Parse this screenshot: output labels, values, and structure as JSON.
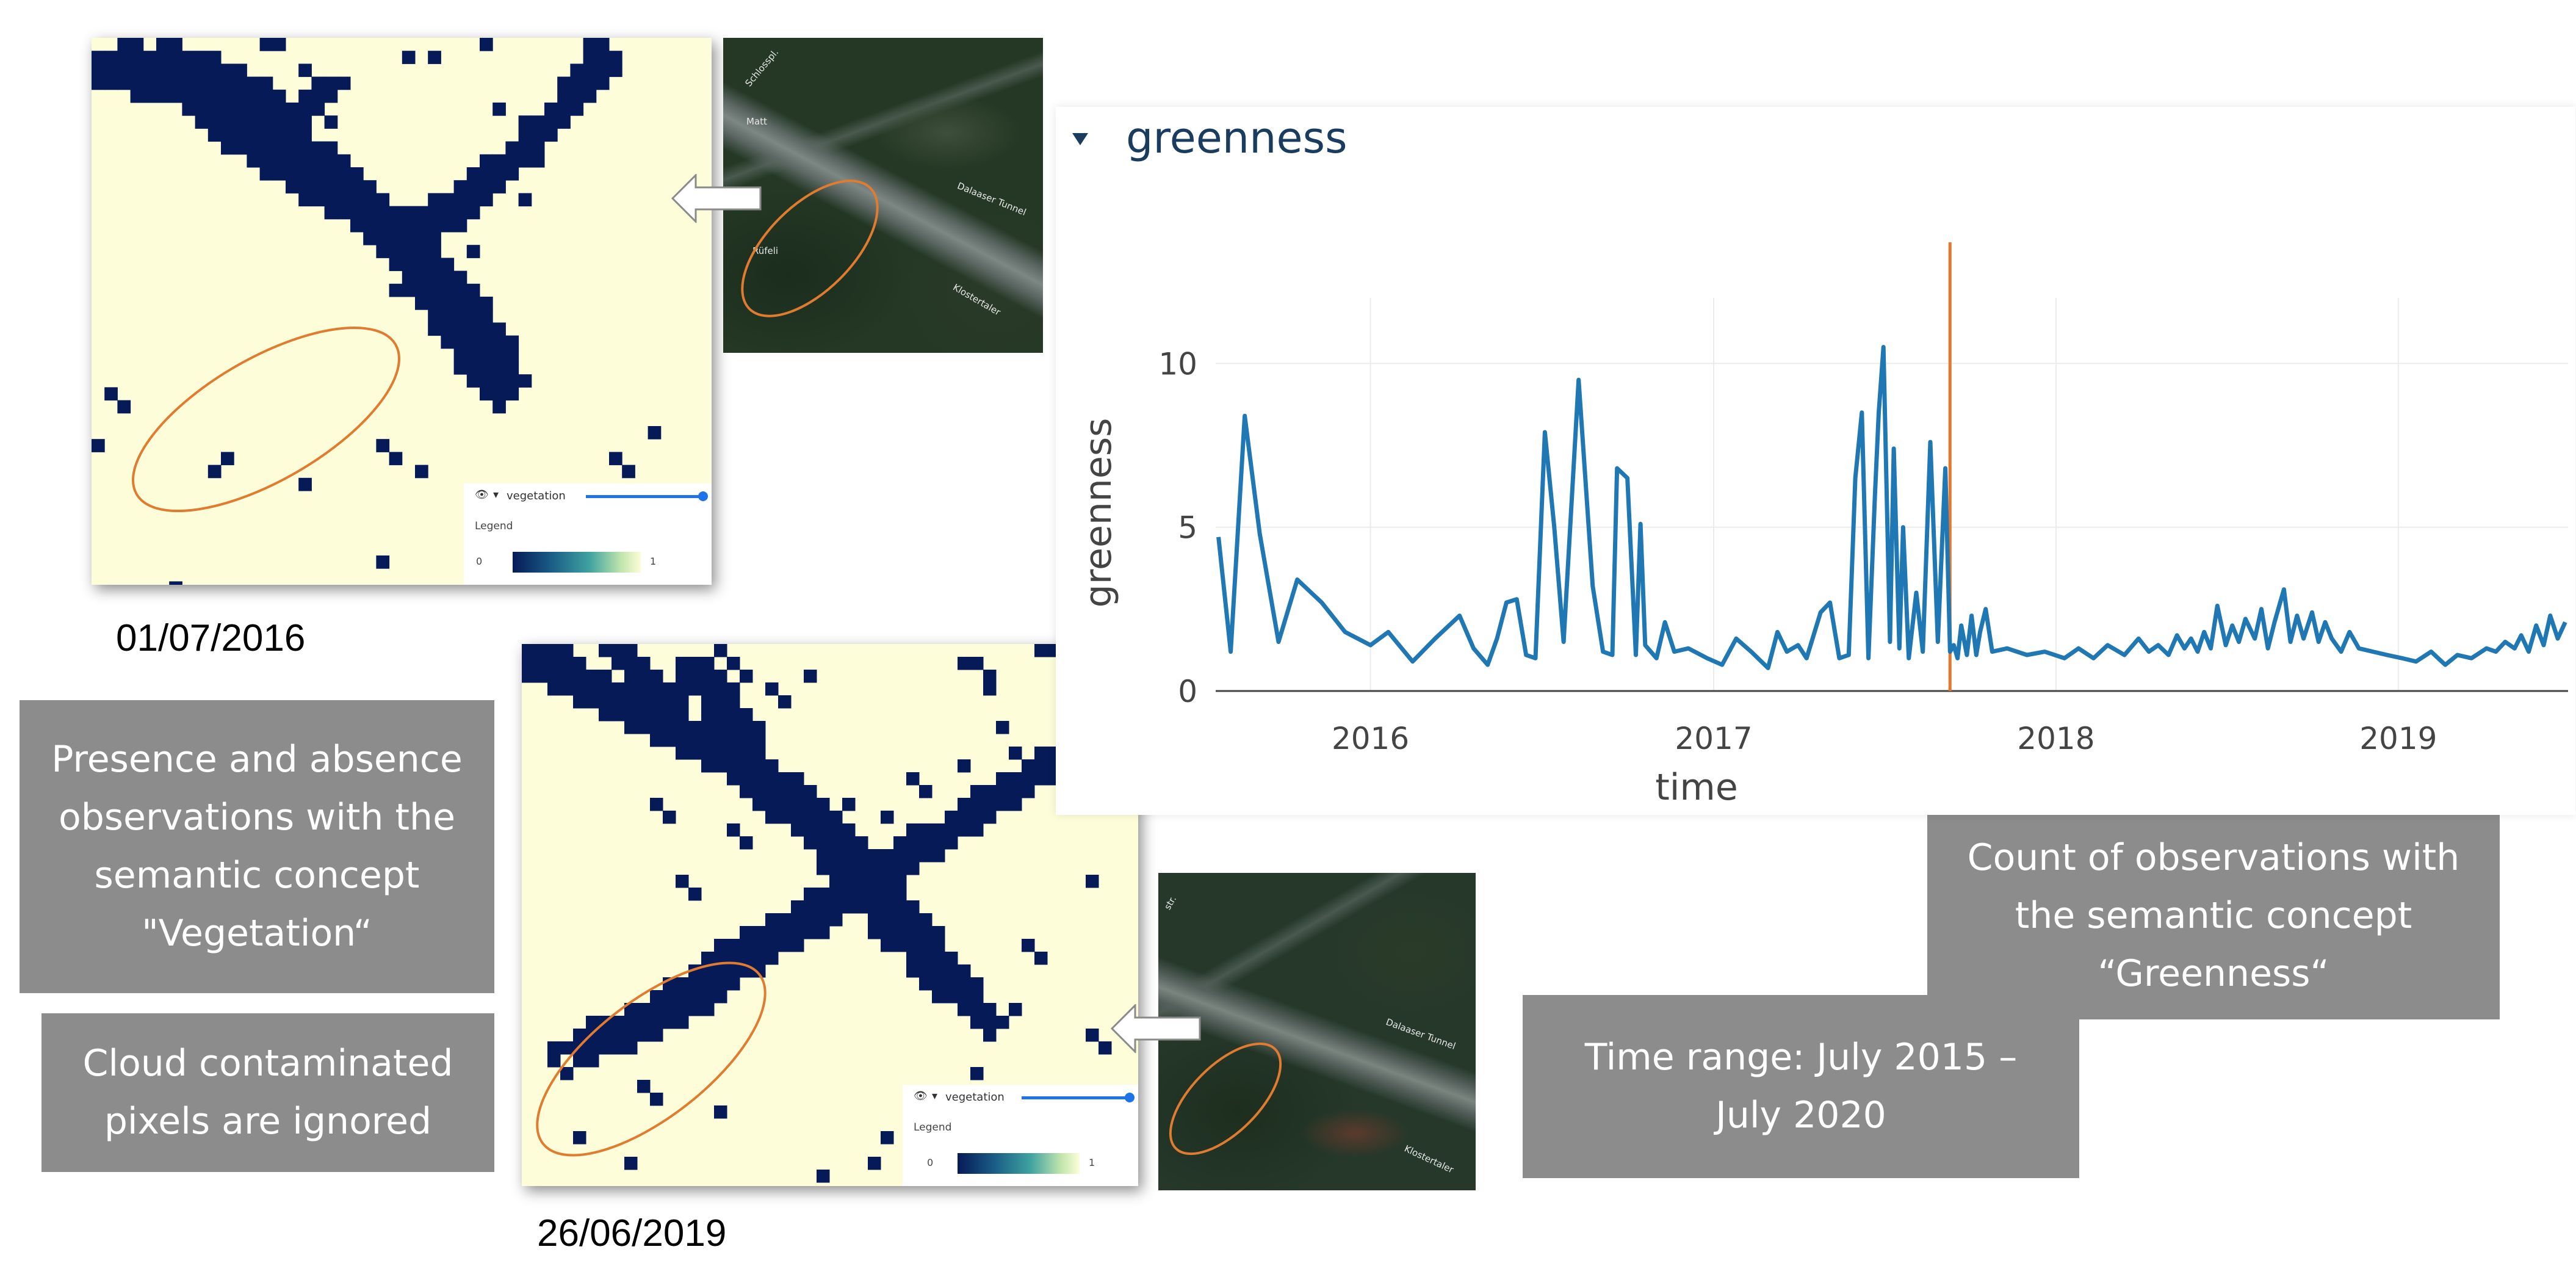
{
  "colors": {
    "vegetation": "#061a57",
    "background": "#fdfdd9",
    "ellipse": "#e07b2f",
    "series": "#1f77b4",
    "marker": "#e6772e",
    "callout": "#8c8c8c"
  },
  "panel1": {
    "date": "01/07/2016",
    "layer_name": "vegetation",
    "legend_title": "Legend",
    "legend_min": "0",
    "legend_max": "1",
    "eye_icon": "eye-icon",
    "satellite_labels": [
      "Schlosspl.",
      "Matt",
      "Dalaaser Tunnel",
      "Rüfeli",
      "Klostertaler"
    ]
  },
  "panel2": {
    "date": "26/06/2019",
    "layer_name": "vegetation",
    "legend_title": "Legend",
    "legend_min": "0",
    "legend_max": "1",
    "eye_icon": "eye-icon",
    "satellite_labels": [
      "Dalaaser Tunnel",
      "Klostertaler",
      "str."
    ]
  },
  "callouts": {
    "presence": [
      "Presence and absence",
      "observations with the",
      "semantic concept",
      "\"Vegetation“"
    ],
    "cloud": [
      "Cloud contaminated",
      "pixels are ignored"
    ],
    "count": [
      "Count of observations with",
      "the semantic concept",
      "“Greenness“"
    ],
    "time_range": [
      "Time range: July 2015 –",
      "July 2020"
    ]
  },
  "chart_data": {
    "type": "line",
    "title": "greenness",
    "xlabel": "time",
    "ylabel": "greenness",
    "xlim": [
      "2015-07-20",
      "2019-07-01"
    ],
    "ylim": [
      0,
      12
    ],
    "yticks": [
      0,
      5,
      10
    ],
    "xticks": [
      "2016",
      "2017",
      "2018",
      "2019"
    ],
    "grid": true,
    "vline": "2017-09-10",
    "series": [
      {
        "x": [
          "2015-07-23",
          "2015-08-05",
          "2015-08-20",
          "2015-09-05",
          "2015-09-25",
          "2015-10-15",
          "2015-11-10",
          "2015-12-05",
          "2016-01-01",
          "2016-01-20",
          "2016-02-15",
          "2016-03-10",
          "2016-04-05",
          "2016-04-20",
          "2016-05-05",
          "2016-05-15",
          "2016-05-25",
          "2016-06-05",
          "2016-06-15",
          "2016-06-25",
          "2016-07-05",
          "2016-07-15",
          "2016-07-25",
          "2016-08-10",
          "2016-08-25",
          "2016-09-05",
          "2016-09-15",
          "2016-09-20",
          "2016-10-01",
          "2016-10-10",
          "2016-10-15",
          "2016-10-20",
          "2016-11-01",
          "2016-11-10",
          "2016-11-20",
          "2016-12-05",
          "2016-12-25",
          "2017-01-10",
          "2017-01-25",
          "2017-02-10",
          "2017-02-28",
          "2017-03-10",
          "2017-03-20",
          "2017-04-01",
          "2017-04-10",
          "2017-04-25",
          "2017-05-05",
          "2017-05-15",
          "2017-05-25",
          "2017-06-01",
          "2017-06-08",
          "2017-06-15",
          "2017-06-22",
          "2017-06-26",
          "2017-07-01",
          "2017-07-08",
          "2017-07-12",
          "2017-07-18",
          "2017-07-22",
          "2017-07-28",
          "2017-08-05",
          "2017-08-12",
          "2017-08-20",
          "2017-08-28",
          "2017-09-05",
          "2017-09-10",
          "2017-09-14",
          "2017-09-18",
          "2017-09-22",
          "2017-09-28",
          "2017-10-03",
          "2017-10-08",
          "2017-10-12",
          "2017-10-18",
          "2017-10-25",
          "2017-11-10",
          "2017-12-01",
          "2017-12-20",
          "2018-01-10",
          "2018-01-25",
          "2018-02-10",
          "2018-02-25",
          "2018-03-15",
          "2018-03-30",
          "2018-04-10",
          "2018-04-20",
          "2018-05-01",
          "2018-05-10",
          "2018-05-18",
          "2018-05-25",
          "2018-06-01",
          "2018-06-08",
          "2018-06-15",
          "2018-06-22",
          "2018-07-01",
          "2018-07-08",
          "2018-07-15",
          "2018-07-22",
          "2018-08-01",
          "2018-08-08",
          "2018-08-15",
          "2018-08-22",
          "2018-09-01",
          "2018-09-08",
          "2018-09-15",
          "2018-09-22",
          "2018-10-01",
          "2018-10-08",
          "2018-10-15",
          "2018-10-22",
          "2018-11-01",
          "2018-11-10",
          "2018-11-20",
          "2018-12-05",
          "2018-12-20",
          "2019-01-05",
          "2019-01-20",
          "2019-02-05",
          "2019-02-20",
          "2019-03-05",
          "2019-03-20",
          "2019-04-05",
          "2019-04-15",
          "2019-04-25",
          "2019-05-05",
          "2019-05-12",
          "2019-05-20",
          "2019-05-28",
          "2019-06-05",
          "2019-06-12",
          "2019-06-20",
          "2019-06-28"
        ],
        "y": [
          4.7,
          1.2,
          8.4,
          4.8,
          1.5,
          3.4,
          2.7,
          1.8,
          1.4,
          1.8,
          0.9,
          1.6,
          2.3,
          1.3,
          0.8,
          1.6,
          2.7,
          2.8,
          1.1,
          1.0,
          7.9,
          5.0,
          1.5,
          9.5,
          3.2,
          1.2,
          1.1,
          6.8,
          6.5,
          1.1,
          5.1,
          1.4,
          1.0,
          2.1,
          1.2,
          1.3,
          1.0,
          0.8,
          1.6,
          1.2,
          0.7,
          1.8,
          1.2,
          1.4,
          1.0,
          2.4,
          2.7,
          1.0,
          1.1,
          6.5,
          8.5,
          1.0,
          6.0,
          8.5,
          10.5,
          1.5,
          7.4,
          1.3,
          5.0,
          1.0,
          3.0,
          1.2,
          7.6,
          1.5,
          6.8,
          1.2,
          1.4,
          1.0,
          2.0,
          1.1,
          2.3,
          1.1,
          1.8,
          2.5,
          1.2,
          1.3,
          1.1,
          1.2,
          1.0,
          1.3,
          1.0,
          1.4,
          1.1,
          1.6,
          1.2,
          1.4,
          1.1,
          1.7,
          1.3,
          1.6,
          1.2,
          1.8,
          1.3,
          2.6,
          1.4,
          2.0,
          1.5,
          2.2,
          1.6,
          2.5,
          1.3,
          2.1,
          3.1,
          1.5,
          2.3,
          1.6,
          2.4,
          1.5,
          2.1,
          1.6,
          1.2,
          1.8,
          1.3,
          1.2,
          1.1,
          1.0,
          0.9,
          1.2,
          0.8,
          1.1,
          1.0,
          1.3,
          1.2,
          1.5,
          1.3,
          1.7,
          1.2,
          2.0,
          1.4,
          2.3,
          1.6,
          2.1
        ]
      }
    ]
  }
}
